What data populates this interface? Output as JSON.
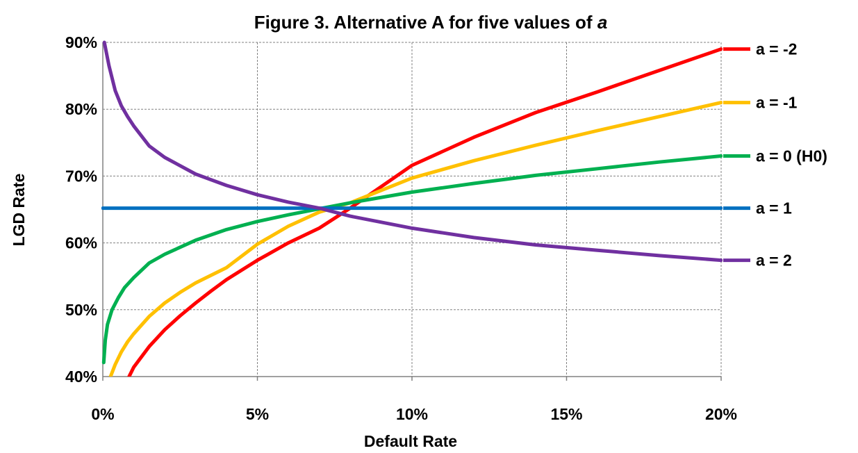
{
  "chart_data": {
    "type": "line",
    "title_main": "Figure 3. Alternative A for five values of ",
    "title_italic": "a",
    "xlabel": "Default Rate",
    "ylabel": "LGD Rate",
    "xlim": [
      0,
      0.2
    ],
    "ylim": [
      0.4,
      0.9
    ],
    "x_ticks": [
      0,
      0.05,
      0.1,
      0.15,
      0.2
    ],
    "x_tick_labels": [
      "0%",
      "5%",
      "10%",
      "15%",
      "20%"
    ],
    "y_ticks": [
      0.4,
      0.5,
      0.6,
      0.7,
      0.8,
      0.9
    ],
    "y_tick_labels": [
      "40%",
      "50%",
      "60%",
      "70%",
      "80%",
      "90%"
    ],
    "grid": true,
    "legend_position": "right, at line ends",
    "series": [
      {
        "name": "a = -2",
        "color": "#ff0000",
        "x": [
          0.0085,
          0.01,
          0.015,
          0.02,
          0.025,
          0.03,
          0.035,
          0.04,
          0.05,
          0.06,
          0.07,
          0.08,
          0.1,
          0.12,
          0.14,
          0.16,
          0.18,
          0.2
        ],
        "y": [
          0.4,
          0.414,
          0.445,
          0.47,
          0.491,
          0.51,
          0.528,
          0.545,
          0.574,
          0.6,
          0.622,
          0.652,
          0.716,
          0.758,
          0.795,
          0.826,
          0.858,
          0.89
        ]
      },
      {
        "name": "a = -1",
        "color": "#ffc000",
        "x": [
          0.0025,
          0.004,
          0.006,
          0.008,
          0.01,
          0.015,
          0.02,
          0.025,
          0.03,
          0.04,
          0.05,
          0.06,
          0.07,
          0.08,
          0.1,
          0.12,
          0.14,
          0.16,
          0.18,
          0.2
        ],
        "y": [
          0.4,
          0.418,
          0.437,
          0.452,
          0.464,
          0.49,
          0.51,
          0.526,
          0.54,
          0.563,
          0.598,
          0.625,
          0.646,
          0.66,
          0.697,
          0.723,
          0.746,
          0.768,
          0.789,
          0.81
        ]
      },
      {
        "name": "a = 0 (H0)",
        "color": "#00b050",
        "x": [
          0.0003,
          0.0008,
          0.0015,
          0.003,
          0.005,
          0.007,
          0.01,
          0.015,
          0.02,
          0.03,
          0.04,
          0.05,
          0.06,
          0.07,
          0.08,
          0.1,
          0.12,
          0.14,
          0.16,
          0.18,
          0.2
        ],
        "y": [
          0.421,
          0.455,
          0.478,
          0.5,
          0.518,
          0.533,
          0.548,
          0.57,
          0.583,
          0.604,
          0.62,
          0.632,
          0.642,
          0.651,
          0.66,
          0.676,
          0.689,
          0.701,
          0.711,
          0.721,
          0.73
        ]
      },
      {
        "name": "a = 1",
        "color": "#0070c0",
        "x": [
          0,
          0.2
        ],
        "y": [
          0.652,
          0.652
        ]
      },
      {
        "name": "a = 2",
        "color": "#7030a0",
        "x": [
          0.0005,
          0.002,
          0.004,
          0.006,
          0.008,
          0.01,
          0.015,
          0.02,
          0.03,
          0.04,
          0.05,
          0.06,
          0.07,
          0.08,
          0.1,
          0.12,
          0.14,
          0.16,
          0.18,
          0.2
        ],
        "y": [
          0.9,
          0.865,
          0.828,
          0.805,
          0.789,
          0.775,
          0.745,
          0.728,
          0.703,
          0.686,
          0.672,
          0.661,
          0.652,
          0.64,
          0.622,
          0.608,
          0.597,
          0.589,
          0.581,
          0.574
        ]
      }
    ]
  }
}
